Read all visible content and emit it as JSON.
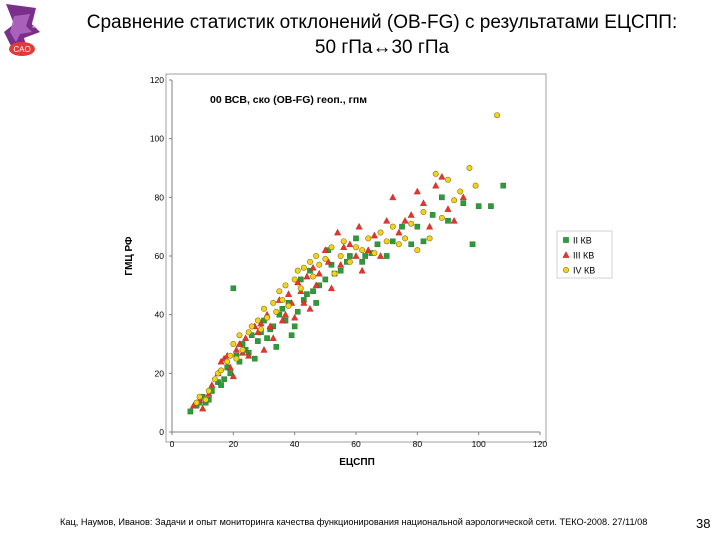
{
  "slide": {
    "title_line1": "Сравнение статистик отклонений (OB-FG) с результатами ЕЦСПП:",
    "title_line2": "50 гПа↔30 гПа",
    "footer": "Кац, Наумов, Иванов: Задачи и опыт мониторинга качества функционирования национальной аэрологической сети. ТЕКО-2008. 27/11/08",
    "page_number": "38",
    "logo": {
      "top_text": "НЦ",
      "bottom_text": "CAO",
      "colors": {
        "main": "#7a2f8a",
        "badge": "#e23a3a"
      }
    }
  },
  "chart_data": {
    "type": "scatter",
    "title": "00 ВСВ, ско (OB-FG) геоп., гпм",
    "xlabel": "ЕЦСПП",
    "ylabel": "ГМЦ РФ",
    "xlim": [
      0,
      120
    ],
    "ylim": [
      0,
      120
    ],
    "x_ticks": [
      "0",
      "20",
      "40",
      "60",
      "80",
      "100",
      "120"
    ],
    "y_ticks": [
      "0",
      "20",
      "40",
      "60",
      "80",
      "100",
      "120"
    ],
    "grid": false,
    "legend_position": "right",
    "series": [
      {
        "name": "II КВ",
        "marker": "square",
        "color": "#2e9b3a",
        "points": [
          [
            6,
            7
          ],
          [
            8,
            9
          ],
          [
            9,
            10
          ],
          [
            10,
            12
          ],
          [
            11,
            10
          ],
          [
            12,
            11
          ],
          [
            13,
            14
          ],
          [
            15,
            17
          ],
          [
            16,
            16
          ],
          [
            17,
            18
          ],
          [
            18,
            22
          ],
          [
            19,
            20
          ],
          [
            20,
            49
          ],
          [
            21,
            26
          ],
          [
            22,
            24
          ],
          [
            23,
            30
          ],
          [
            24,
            28
          ],
          [
            25,
            27
          ],
          [
            26,
            33
          ],
          [
            27,
            25
          ],
          [
            28,
            31
          ],
          [
            29,
            34
          ],
          [
            30,
            38
          ],
          [
            31,
            32
          ],
          [
            32,
            35
          ],
          [
            33,
            36
          ],
          [
            34,
            29
          ],
          [
            35,
            40
          ],
          [
            36,
            42
          ],
          [
            37,
            38
          ],
          [
            38,
            44
          ],
          [
            39,
            33
          ],
          [
            40,
            36
          ],
          [
            41,
            41
          ],
          [
            42,
            52
          ],
          [
            43,
            45
          ],
          [
            44,
            47
          ],
          [
            45,
            55
          ],
          [
            46,
            48
          ],
          [
            47,
            44
          ],
          [
            48,
            50
          ],
          [
            50,
            52
          ],
          [
            51,
            62
          ],
          [
            52,
            57
          ],
          [
            53,
            54
          ],
          [
            55,
            55
          ],
          [
            57,
            58
          ],
          [
            58,
            60
          ],
          [
            60,
            66
          ],
          [
            62,
            58
          ],
          [
            63,
            60
          ],
          [
            65,
            61
          ],
          [
            67,
            64
          ],
          [
            70,
            60
          ],
          [
            72,
            65
          ],
          [
            75,
            70
          ],
          [
            78,
            64
          ],
          [
            80,
            70
          ],
          [
            82,
            65
          ],
          [
            85,
            74
          ],
          [
            88,
            80
          ],
          [
            90,
            72
          ],
          [
            95,
            78
          ],
          [
            98,
            64
          ],
          [
            100,
            77
          ],
          [
            104,
            77
          ],
          [
            108,
            84
          ]
        ]
      },
      {
        "name": "III КВ",
        "marker": "triangle",
        "color": "#e8352a",
        "points": [
          [
            7,
            9
          ],
          [
            9,
            11
          ],
          [
            10,
            8
          ],
          [
            12,
            13
          ],
          [
            13,
            16
          ],
          [
            15,
            20
          ],
          [
            16,
            24
          ],
          [
            17,
            25
          ],
          [
            18,
            26
          ],
          [
            19,
            22
          ],
          [
            20,
            19
          ],
          [
            21,
            28
          ],
          [
            22,
            30
          ],
          [
            23,
            27
          ],
          [
            24,
            32
          ],
          [
            25,
            26
          ],
          [
            27,
            36
          ],
          [
            28,
            34
          ],
          [
            29,
            37
          ],
          [
            30,
            28
          ],
          [
            31,
            40
          ],
          [
            32,
            36
          ],
          [
            33,
            32
          ],
          [
            35,
            45
          ],
          [
            36,
            38
          ],
          [
            37,
            40
          ],
          [
            38,
            47
          ],
          [
            39,
            44
          ],
          [
            40,
            39
          ],
          [
            41,
            51
          ],
          [
            42,
            48
          ],
          [
            43,
            44
          ],
          [
            44,
            53
          ],
          [
            45,
            42
          ],
          [
            46,
            56
          ],
          [
            47,
            50
          ],
          [
            48,
            54
          ],
          [
            50,
            62
          ],
          [
            51,
            58
          ],
          [
            52,
            49
          ],
          [
            54,
            68
          ],
          [
            55,
            57
          ],
          [
            56,
            63
          ],
          [
            58,
            64
          ],
          [
            60,
            60
          ],
          [
            61,
            70
          ],
          [
            62,
            55
          ],
          [
            64,
            62
          ],
          [
            66,
            67
          ],
          [
            68,
            60
          ],
          [
            70,
            72
          ],
          [
            72,
            80
          ],
          [
            74,
            68
          ],
          [
            76,
            72
          ],
          [
            78,
            74
          ],
          [
            80,
            82
          ],
          [
            82,
            78
          ],
          [
            84,
            70
          ],
          [
            86,
            84
          ],
          [
            88,
            87
          ],
          [
            90,
            76
          ],
          [
            92,
            72
          ],
          [
            95,
            80
          ]
        ]
      },
      {
        "name": "IV КВ",
        "marker": "circle",
        "color": "#f2d21a",
        "points": [
          [
            8,
            10
          ],
          [
            9,
            12
          ],
          [
            11,
            11
          ],
          [
            12,
            14
          ],
          [
            14,
            18
          ],
          [
            15,
            20
          ],
          [
            16,
            21
          ],
          [
            18,
            24
          ],
          [
            19,
            26
          ],
          [
            20,
            30
          ],
          [
            21,
            25
          ],
          [
            22,
            33
          ],
          [
            23,
            28
          ],
          [
            25,
            34
          ],
          [
            26,
            36
          ],
          [
            28,
            38
          ],
          [
            29,
            35
          ],
          [
            30,
            42
          ],
          [
            31,
            39
          ],
          [
            33,
            44
          ],
          [
            34,
            41
          ],
          [
            35,
            48
          ],
          [
            36,
            45
          ],
          [
            37,
            50
          ],
          [
            38,
            43
          ],
          [
            40,
            52
          ],
          [
            41,
            55
          ],
          [
            42,
            49
          ],
          [
            43,
            56
          ],
          [
            45,
            58
          ],
          [
            46,
            53
          ],
          [
            47,
            60
          ],
          [
            48,
            57
          ],
          [
            50,
            59
          ],
          [
            52,
            63
          ],
          [
            53,
            54
          ],
          [
            55,
            60
          ],
          [
            56,
            65
          ],
          [
            58,
            58
          ],
          [
            60,
            63
          ],
          [
            62,
            62
          ],
          [
            64,
            66
          ],
          [
            66,
            61
          ],
          [
            68,
            68
          ],
          [
            70,
            65
          ],
          [
            72,
            70
          ],
          [
            74,
            64
          ],
          [
            76,
            66
          ],
          [
            78,
            71
          ],
          [
            80,
            62
          ],
          [
            82,
            75
          ],
          [
            84,
            66
          ],
          [
            86,
            88
          ],
          [
            88,
            73
          ],
          [
            90,
            86
          ],
          [
            92,
            79
          ],
          [
            94,
            82
          ],
          [
            97,
            90
          ],
          [
            99,
            84
          ],
          [
            106,
            108
          ]
        ]
      }
    ]
  }
}
